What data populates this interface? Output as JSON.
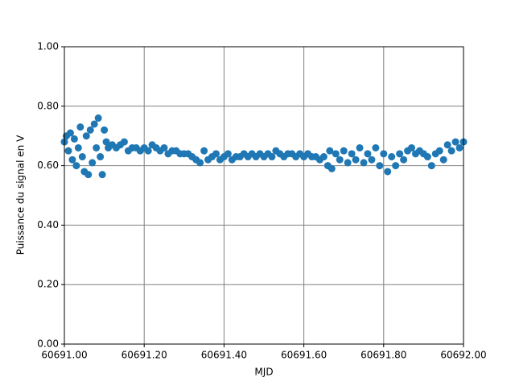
{
  "chart_data": {
    "type": "scatter",
    "xlabel": "MJD",
    "ylabel": "Puissance du signal en V",
    "color": "#1f77b4",
    "grid": true,
    "xlim": [
      60691.0,
      60692.0
    ],
    "xticks": [
      {
        "value": 60691.0,
        "label": "60691.00"
      },
      {
        "value": 60691.2,
        "label": "60691.20"
      },
      {
        "value": 60691.4,
        "label": "60691.40"
      },
      {
        "value": 60691.6,
        "label": "60691.60"
      },
      {
        "value": 60691.8,
        "label": "60691.80"
      },
      {
        "value": 60692.0,
        "label": "60692.00"
      }
    ],
    "ylim": [
      0,
      1
    ],
    "yticks": [
      {
        "value": 0,
        "label": "0.00"
      },
      {
        "value": 0.2,
        "label": "0.20"
      },
      {
        "value": 0.4,
        "label": "0.40"
      },
      {
        "value": 0.6,
        "label": "0.60"
      },
      {
        "value": 0.8,
        "label": "0.80"
      },
      {
        "value": 1,
        "label": "1.00"
      }
    ],
    "x": [
      60691.0,
      60691.005,
      60691.01,
      60691.015,
      60691.02,
      60691.025,
      60691.03,
      60691.035,
      60691.04,
      60691.045,
      60691.05,
      60691.055,
      60691.06,
      60691.065,
      60691.07,
      60691.075,
      60691.08,
      60691.085,
      60691.09,
      60691.095,
      60691.1,
      60691.105,
      60691.11,
      60691.12,
      60691.13,
      60691.14,
      60691.15,
      60691.16,
      60691.17,
      60691.18,
      60691.19,
      60691.2,
      60691.21,
      60691.22,
      60691.23,
      60691.24,
      60691.25,
      60691.26,
      60691.27,
      60691.28,
      60691.29,
      60691.3,
      60691.31,
      60691.32,
      60691.33,
      60691.34,
      60691.35,
      60691.36,
      60691.37,
      60691.38,
      60691.39,
      60691.4,
      60691.41,
      60691.42,
      60691.43,
      60691.44,
      60691.45,
      60691.46,
      60691.47,
      60691.48,
      60691.49,
      60691.5,
      60691.51,
      60691.52,
      60691.53,
      60691.54,
      60691.55,
      60691.56,
      60691.57,
      60691.58,
      60691.59,
      60691.6,
      60691.61,
      60691.62,
      60691.63,
      60691.64,
      60691.65,
      60691.66,
      60691.665,
      60691.67,
      60691.68,
      60691.69,
      60691.7,
      60691.71,
      60691.72,
      60691.73,
      60691.74,
      60691.75,
      60691.76,
      60691.77,
      60691.78,
      60691.79,
      60691.8,
      60691.81,
      60691.82,
      60691.83,
      60691.84,
      60691.85,
      60691.86,
      60691.87,
      60691.88,
      60691.89,
      60691.9,
      60691.91,
      60691.92,
      60691.93,
      60691.94,
      60691.95,
      60691.96,
      60691.97,
      60691.98,
      60691.99,
      60692.0
    ],
    "values": [
      0.68,
      0.7,
      0.65,
      0.71,
      0.62,
      0.69,
      0.6,
      0.66,
      0.73,
      0.63,
      0.58,
      0.7,
      0.57,
      0.72,
      0.61,
      0.74,
      0.66,
      0.76,
      0.63,
      0.57,
      0.72,
      0.68,
      0.66,
      0.67,
      0.66,
      0.67,
      0.68,
      0.65,
      0.66,
      0.66,
      0.65,
      0.66,
      0.65,
      0.67,
      0.66,
      0.65,
      0.66,
      0.64,
      0.65,
      0.65,
      0.64,
      0.64,
      0.64,
      0.63,
      0.62,
      0.61,
      0.65,
      0.62,
      0.63,
      0.64,
      0.62,
      0.63,
      0.64,
      0.62,
      0.63,
      0.63,
      0.64,
      0.63,
      0.64,
      0.63,
      0.64,
      0.63,
      0.64,
      0.63,
      0.65,
      0.64,
      0.63,
      0.64,
      0.64,
      0.63,
      0.64,
      0.63,
      0.64,
      0.63,
      0.63,
      0.62,
      0.63,
      0.6,
      0.65,
      0.59,
      0.64,
      0.62,
      0.65,
      0.61,
      0.64,
      0.62,
      0.66,
      0.61,
      0.64,
      0.62,
      0.66,
      0.6,
      0.64,
      0.58,
      0.63,
      0.6,
      0.64,
      0.62,
      0.65,
      0.66,
      0.64,
      0.65,
      0.64,
      0.63,
      0.6,
      0.64,
      0.65,
      0.62,
      0.67,
      0.65,
      0.68,
      0.66,
      0.68
    ]
  }
}
